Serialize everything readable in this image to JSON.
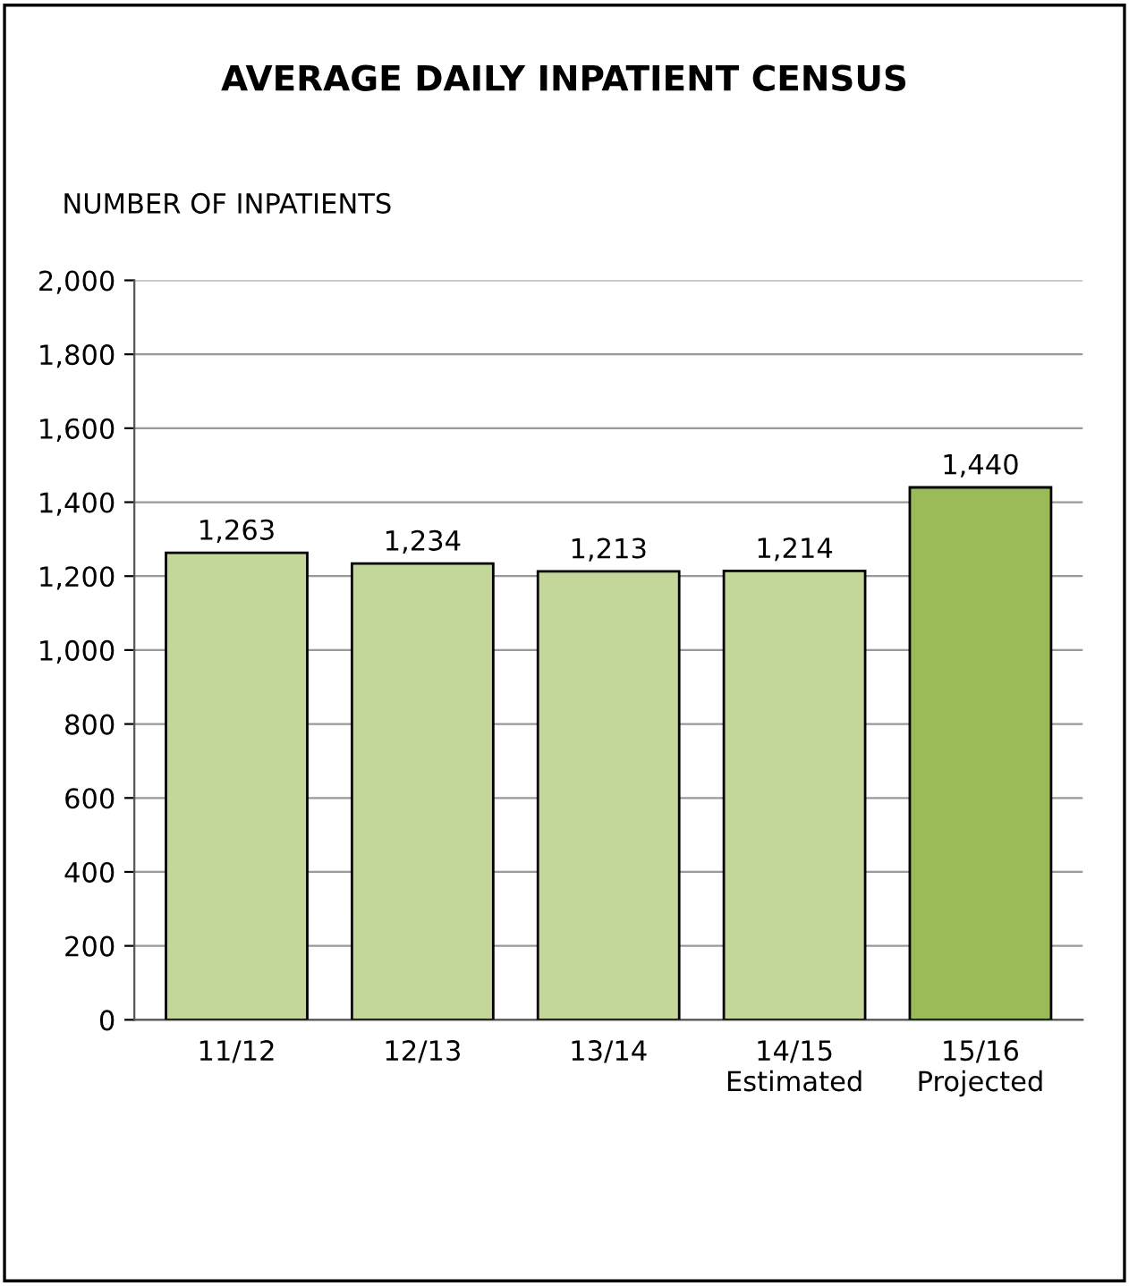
{
  "chart_data": {
    "type": "bar",
    "title": "AVERAGE DAILY INPATIENT CENSUS",
    "ylabel": "NUMBER OF INPATIENTS",
    "categories": [
      "11/12",
      "12/13",
      "13/14",
      "14/15\nEstimated",
      "15/16\nProjected"
    ],
    "values": [
      1263,
      1234,
      1213,
      1214,
      1440
    ],
    "value_labels": [
      "1,263",
      "1,234",
      "1,213",
      "1,214",
      "1,440"
    ],
    "colors": [
      "#c4d79b",
      "#c4d79b",
      "#c4d79b",
      "#c4d79b",
      "#9bbb59"
    ],
    "ylim": [
      0,
      2000
    ],
    "yticks": [
      {
        "value": 0,
        "label": "0"
      },
      {
        "value": 200,
        "label": "200"
      },
      {
        "value": 400,
        "label": "400"
      },
      {
        "value": 600,
        "label": "600"
      },
      {
        "value": 800,
        "label": "800"
      },
      {
        "value": 1000,
        "label": "1,000"
      },
      {
        "value": 1200,
        "label": "1,200"
      },
      {
        "value": 1400,
        "label": "1,400"
      },
      {
        "value": 1600,
        "label": "1,600"
      },
      {
        "value": 1800,
        "label": "1,800"
      },
      {
        "value": 2000,
        "label": "2,000"
      }
    ],
    "grid": "y",
    "legend": false
  }
}
